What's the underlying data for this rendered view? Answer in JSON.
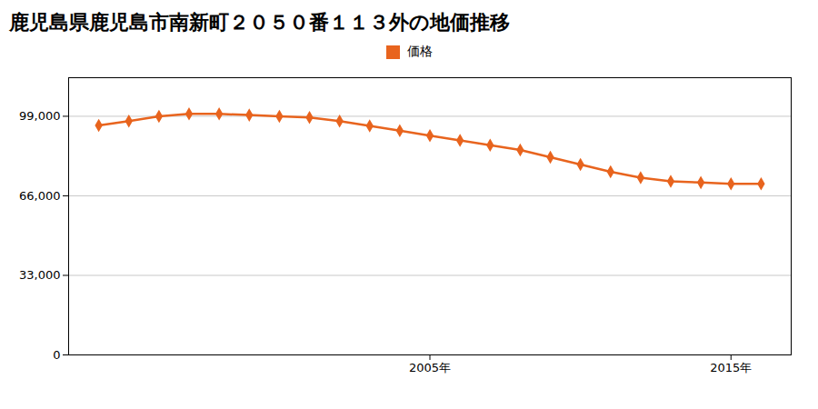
{
  "chart_data": {
    "type": "line",
    "title": "鹿児島県鹿児島市南新町２０５０番１１３外の地価推移",
    "x": [
      1994,
      1995,
      1996,
      1997,
      1998,
      1999,
      2000,
      2001,
      2002,
      2003,
      2004,
      2005,
      2006,
      2007,
      2008,
      2009,
      2010,
      2011,
      2012,
      2013,
      2014,
      2015,
      2016
    ],
    "series": [
      {
        "name": "価格",
        "color": "#E8641E",
        "marker": "diamond",
        "values": [
          95200,
          97000,
          99000,
          100000,
          100000,
          99500,
          99000,
          98500,
          97000,
          95000,
          93000,
          91000,
          89000,
          87000,
          85000,
          82000,
          79000,
          76000,
          73500,
          72000,
          71500,
          71000,
          71000
        ]
      }
    ],
    "xlim": [
      1993,
      2017
    ],
    "xticks": [
      {
        "value": 2005,
        "label": "2005年"
      },
      {
        "value": 2015,
        "label": "2015年"
      }
    ],
    "ylim": [
      0,
      115000
    ],
    "yticks": [
      0,
      {
        "value": 33000,
        "label": "33,000"
      },
      {
        "value": 66000,
        "label": "66,000"
      },
      {
        "value": 99000,
        "label": "99,000"
      }
    ],
    "grid": true,
    "legend": "top"
  }
}
